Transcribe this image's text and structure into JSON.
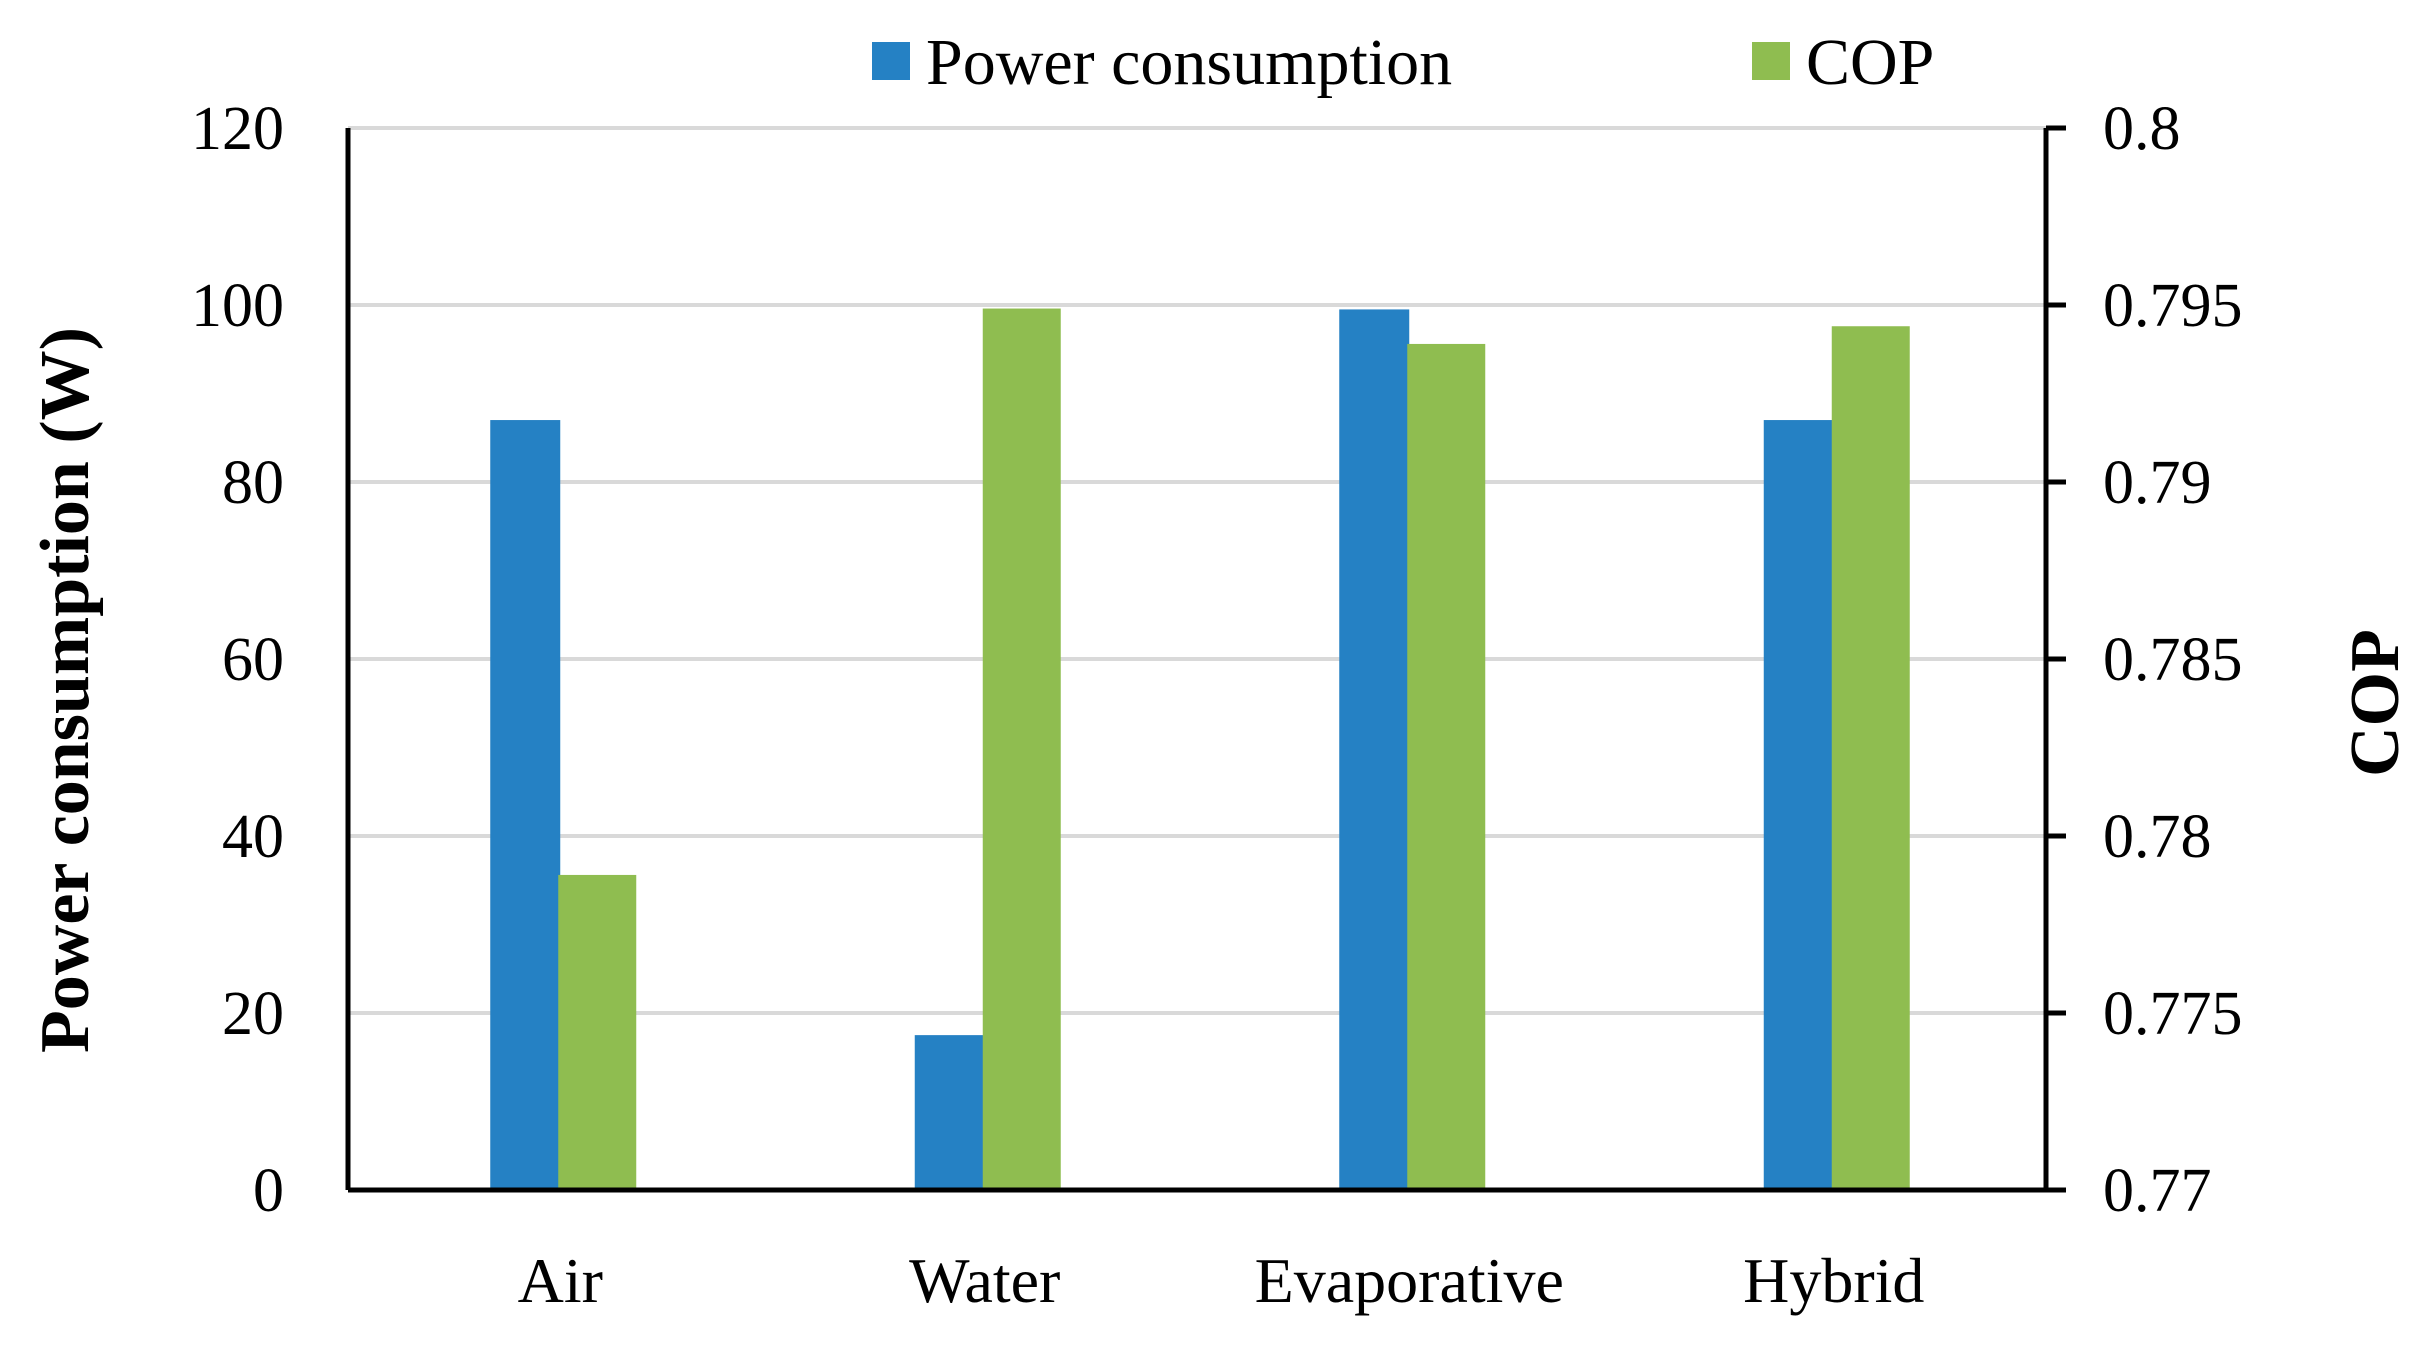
{
  "chart_data": {
    "type": "bar",
    "title": "",
    "categories": [
      "Air",
      "Water",
      "Evaporative",
      "Hybrid"
    ],
    "series": [
      {
        "name": "Power consumption",
        "axis": "left",
        "color": "#2581C4",
        "values": [
          87,
          17.5,
          99.5,
          87
        ]
      },
      {
        "name": "COP",
        "axis": "right",
        "color": "#8FBD50",
        "values": [
          0.7789,
          0.7949,
          0.7939,
          0.7944
        ]
      }
    ],
    "xlabel": "",
    "ylabel": "Power consumption (W)",
    "y2label": "COP",
    "ylim": [
      0,
      120
    ],
    "y2lim": [
      0.77,
      0.8
    ],
    "yticks": [
      "0",
      "20",
      "40",
      "60",
      "80",
      "100",
      "120"
    ],
    "y2ticks": [
      "0.77",
      "0.775",
      "0.78",
      "0.785",
      "0.79",
      "0.795",
      "0.8"
    ],
    "grid": true,
    "legend": "top-center"
  }
}
